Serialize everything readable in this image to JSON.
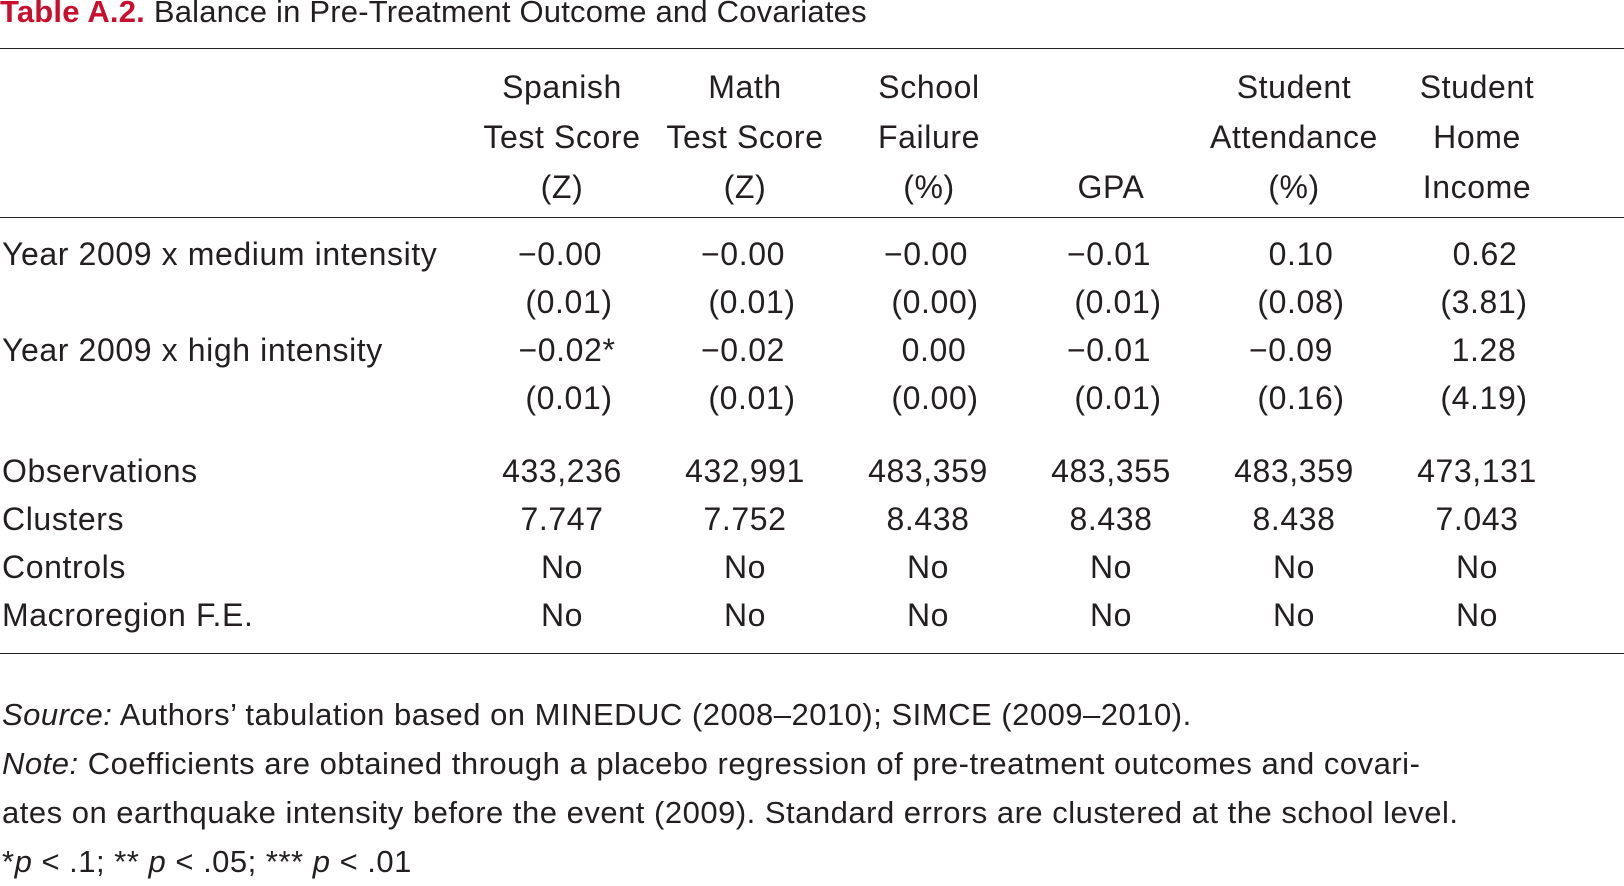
{
  "table": {
    "label": "Table A.2.",
    "title": "Balance in Pre-Treatment Outcome and Covariates",
    "columns": [
      {
        "line1": "Spanish",
        "line2": "Test Score",
        "line3": "(Z)"
      },
      {
        "line1": "Math",
        "line2": "Test Score",
        "line3": "(Z)"
      },
      {
        "line1": "School",
        "line2": "Failure",
        "line3": "(%)"
      },
      {
        "line1": "",
        "line2": "",
        "line3": "GPA"
      },
      {
        "line1": "Student",
        "line2": "Attendance",
        "line3": "(%)"
      },
      {
        "line1": "Student",
        "line2": "Home",
        "line3": "Income"
      }
    ],
    "coef_rows": [
      {
        "label": "Year 2009 x medium intensity",
        "coefs": [
          "−0.00",
          "−0.00",
          "−0.00",
          "−0.01",
          "0.10",
          "0.62"
        ],
        "ses": [
          "(0.01)",
          "(0.01)",
          "(0.00)",
          "(0.01)",
          "(0.08)",
          "(3.81)"
        ]
      },
      {
        "label": "Year 2009 x high intensity",
        "coefs": [
          "−0.02*",
          "−0.02",
          "0.00",
          "−0.01",
          "−0.09",
          "1.28"
        ],
        "ses": [
          "(0.01)",
          "(0.01)",
          "(0.00)",
          "(0.01)",
          "(0.16)",
          "(4.19)"
        ]
      }
    ],
    "stat_rows": [
      {
        "label": "Observations",
        "values": [
          "433,236",
          "432,991",
          "483,359",
          "483,355",
          "483,359",
          "473,131"
        ]
      },
      {
        "label": "Clusters",
        "values": [
          "7.747",
          "7.752",
          "8.438",
          "8.438",
          "8.438",
          "7.043"
        ]
      },
      {
        "label": "Controls",
        "values": [
          "No",
          "No",
          "No",
          "No",
          "No",
          "No"
        ]
      },
      {
        "label": "Macroregion F.E.",
        "values": [
          "No",
          "No",
          "No",
          "No",
          "No",
          "No"
        ]
      }
    ]
  },
  "notes": {
    "source_label": "Source:",
    "source_text": " Authors’ tabulation based on MINEDUC (2008–2010); SIMCE (2009–2010).",
    "note_label": "Note:",
    "note_line1": " Coefficients are obtained through a placebo regression of pre-treatment outcomes and covari-",
    "note_line2": "ates on earthquake intensity before the event (2009). Standard errors are clustered at the school level.",
    "sig_star1": "*",
    "sig_p1": "p",
    "sig_t1": " < .1; ** ",
    "sig_p2": "p",
    "sig_t2": " < .05; *** ",
    "sig_p3": "p",
    "sig_t3": " < .01"
  }
}
